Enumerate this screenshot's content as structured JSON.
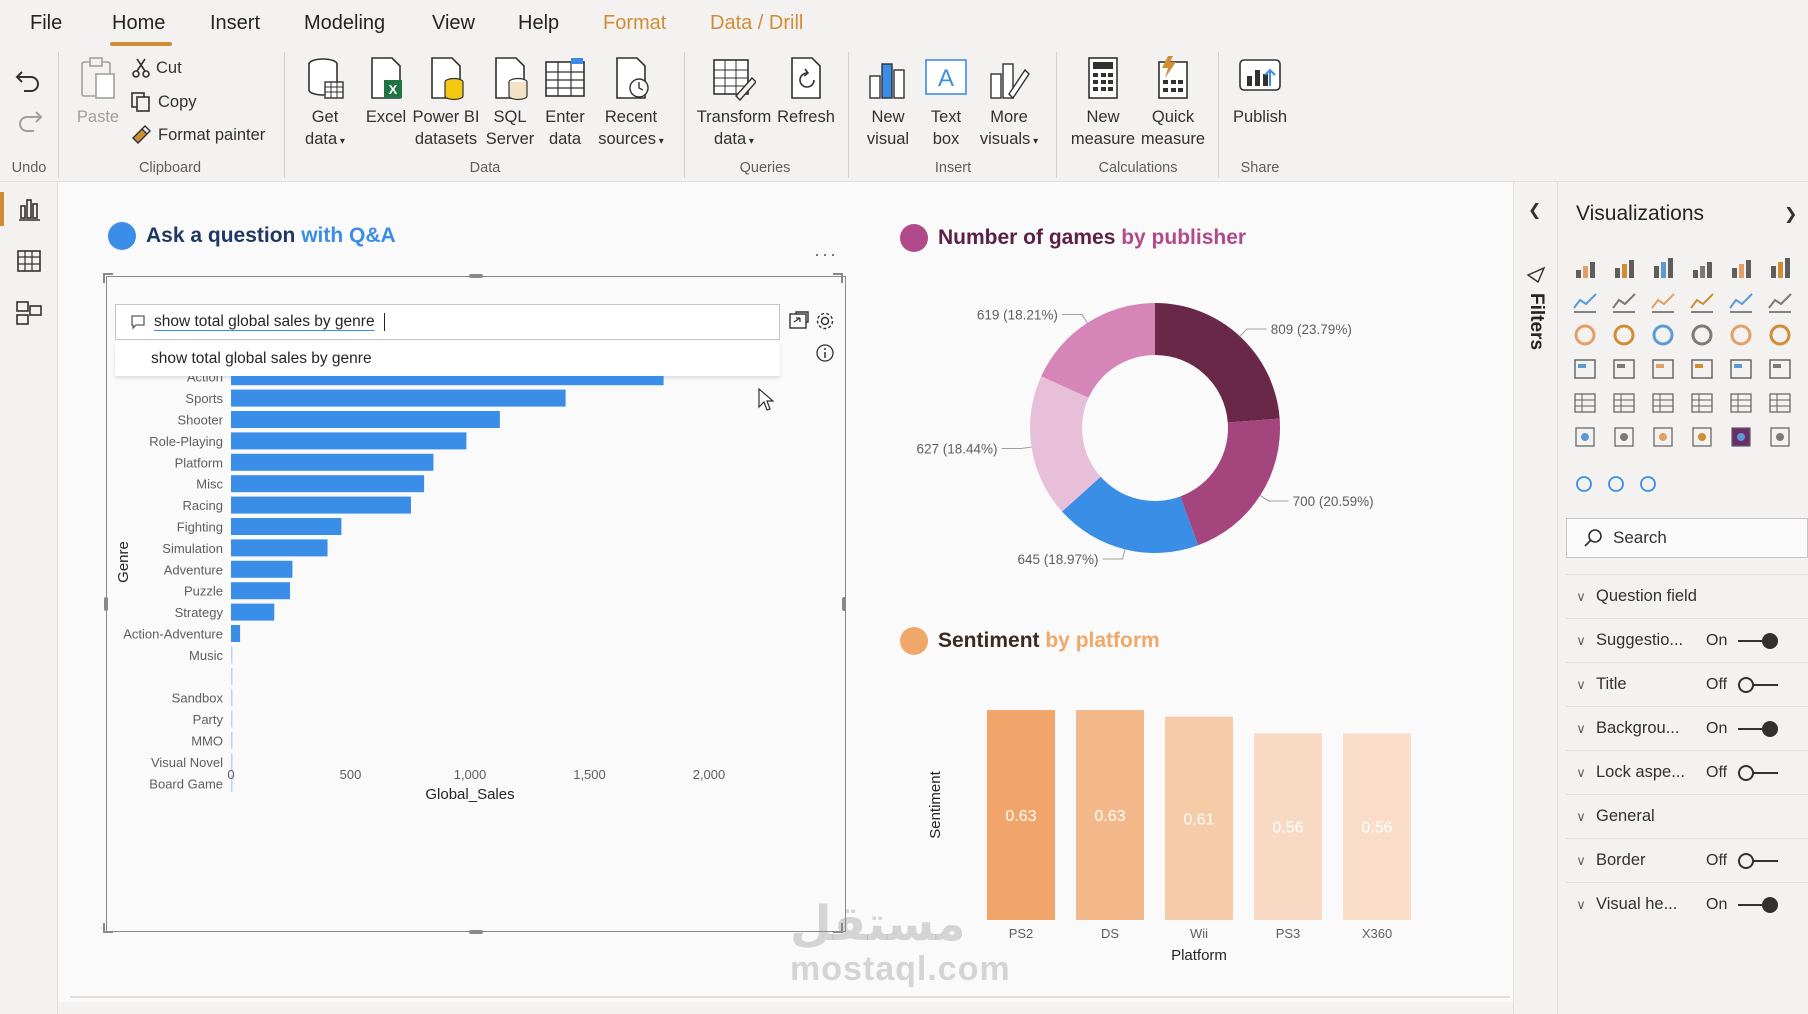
{
  "menu": {
    "tabs": [
      "File",
      "Home",
      "Insert",
      "Modeling",
      "View",
      "Help",
      "Format",
      "Data / Drill"
    ],
    "active": "Home"
  },
  "ribbon": {
    "undo_label": "Undo",
    "clipboard": {
      "paste": "Paste",
      "cut": "Cut",
      "copy": "Copy",
      "format_painter": "Format painter",
      "group": "Clipboard"
    },
    "data": {
      "get_data": [
        "Get",
        "data"
      ],
      "excel": "Excel",
      "pbi_datasets": [
        "Power BI",
        "datasets"
      ],
      "sql": [
        "SQL",
        "Server"
      ],
      "enter_data": [
        "Enter",
        "data"
      ],
      "recent": [
        "Recent",
        "sources"
      ],
      "group": "Data"
    },
    "queries": {
      "transform": [
        "Transform",
        "data"
      ],
      "refresh": "Refresh",
      "group": "Queries"
    },
    "insert": {
      "new_visual": [
        "New",
        "visual"
      ],
      "text_box": [
        "Text",
        "box"
      ],
      "more_visuals": [
        "More",
        "visuals"
      ],
      "group": "Insert"
    },
    "calculations": {
      "new_measure": [
        "New",
        "measure"
      ],
      "quick_measure": [
        "Quick",
        "measure"
      ],
      "group": "Calculations"
    },
    "share": {
      "publish": "Publish",
      "group": "Share"
    }
  },
  "qa": {
    "title_part1": "Ask a question",
    "title_part2": "with Q&A",
    "title_colors": [
      "#1f3864",
      "#3b8ee8"
    ],
    "dot_color": "#3b8ee8",
    "input_value": "show total global sales by genre",
    "suggestion": "show total global sales by genre",
    "more_options": "···"
  },
  "chart_data": [
    {
      "type": "bar",
      "orientation": "horizontal",
      "title": "",
      "xlabel": "Global_Sales",
      "ylabel": "Genre",
      "categories": [
        "Action",
        "Sports",
        "Shooter",
        "Role-Playing",
        "Platform",
        "Misc",
        "Racing",
        "Fighting",
        "Simulation",
        "Adventure",
        "Puzzle",
        "Strategy",
        "Action-Adventure",
        "Music",
        "",
        "Sandbox",
        "Party",
        "MMO",
        "Visual Novel",
        "Board Game"
      ],
      "values": [
        1810,
        1400,
        1125,
        985,
        847,
        808,
        753,
        462,
        404,
        257,
        247,
        181,
        38,
        2,
        2,
        1,
        1,
        1,
        1,
        1
      ],
      "xticks": [
        "0",
        "500",
        "1,000",
        "1,500",
        "2,000"
      ],
      "xlim": [
        0,
        2000
      ],
      "color": "#3b8ee8"
    },
    {
      "type": "pie",
      "title_part1": "Number of games",
      "title_part2": "by publisher",
      "title_colors": [
        "#5b2147",
        "#b04a8a"
      ],
      "dot_color": "#b04a8a",
      "slices": [
        {
          "value": 809,
          "label": "809 (23.79%)",
          "color": "#6a2848"
        },
        {
          "value": 700,
          "label": "700 (20.59%)",
          "color": "#a4457e"
        },
        {
          "value": 645,
          "label": "645 (18.97%)",
          "color": "#3a8ee6"
        },
        {
          "value": 627,
          "label": "627 (18.44%)",
          "color": "#e8bfd8"
        },
        {
          "value": 619,
          "label": "619 (18.21%)",
          "color": "#d585b7"
        }
      ]
    },
    {
      "type": "bar",
      "title_part1": "Sentiment",
      "title_part2": "by platform",
      "title_colors": [
        "#3b2a20",
        "#f0a86a"
      ],
      "dot_color": "#f0a86a",
      "xlabel": "Platform",
      "ylabel": "Sentiment",
      "categories": [
        "PS2",
        "DS",
        "Wii",
        "PS3",
        "X360"
      ],
      "values": [
        0.63,
        0.63,
        0.61,
        0.56,
        0.56
      ],
      "value_labels": [
        "0.63",
        "0.63",
        "0.61",
        "0.56",
        "0.56"
      ],
      "colors": [
        "#f2a56a",
        "#f4b98a",
        "#f6cba8",
        "#f8dac4",
        "#f9ddc8"
      ],
      "ylim": [
        0,
        0.63
      ]
    }
  ],
  "filters": {
    "label": "Filters"
  },
  "visualizations": {
    "title": "Visualizations",
    "search_placeholder": "Search",
    "properties": [
      {
        "label": "Question field",
        "state": "",
        "toggle": null
      },
      {
        "label": "Suggestio...",
        "state": "On",
        "toggle": "on"
      },
      {
        "label": "Title",
        "state": "Off",
        "toggle": "off"
      },
      {
        "label": "Backgrou...",
        "state": "On",
        "toggle": "on"
      },
      {
        "label": "Lock aspe...",
        "state": "Off",
        "toggle": "off"
      },
      {
        "label": "General",
        "state": "",
        "toggle": null
      },
      {
        "label": "Border",
        "state": "Off",
        "toggle": "off"
      },
      {
        "label": "Visual he...",
        "state": "On",
        "toggle": "on"
      }
    ]
  },
  "watermark": {
    "arabic": "مستقل",
    "latin": "mostaql.com"
  }
}
